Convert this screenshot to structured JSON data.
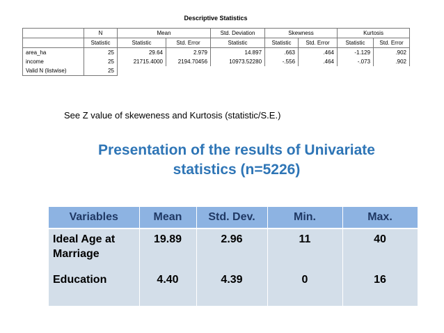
{
  "spss_table": {
    "title": "Descriptive Statistics",
    "groups": [
      "N",
      "Mean",
      "Std. Deviation",
      "Skewness",
      "Kurtosis"
    ],
    "subheaders": [
      "Statistic",
      "Statistic",
      "Std. Error",
      "Statistic",
      "Statistic",
      "Std. Error",
      "Statistic",
      "Std. Error"
    ],
    "rows": [
      [
        "area_ha",
        "25",
        "29.64",
        "2.979",
        "14.897",
        ".663",
        ".464",
        "-1.129",
        ".902"
      ],
      [
        "income",
        "25",
        "21715.4000",
        "2194.70456",
        "10973.52280",
        "-.556",
        ".464",
        "-.073",
        ".902"
      ],
      [
        "Valid N (listwise)",
        "25"
      ]
    ]
  },
  "note": "See Z value of skeweness and Kurtosis (statistic/S.E.)",
  "heading": "Presentation of the results of Univariate statistics (n=5226)",
  "results_table": {
    "headers": [
      "Variables",
      "Mean",
      "Std. Dev.",
      "Min.",
      "Max."
    ],
    "rows": [
      [
        "Ideal Age at Marriage",
        "19.89",
        "2.96",
        "11",
        "40"
      ],
      [
        "Education",
        "4.40",
        "4.39",
        "0",
        "16"
      ]
    ]
  }
}
